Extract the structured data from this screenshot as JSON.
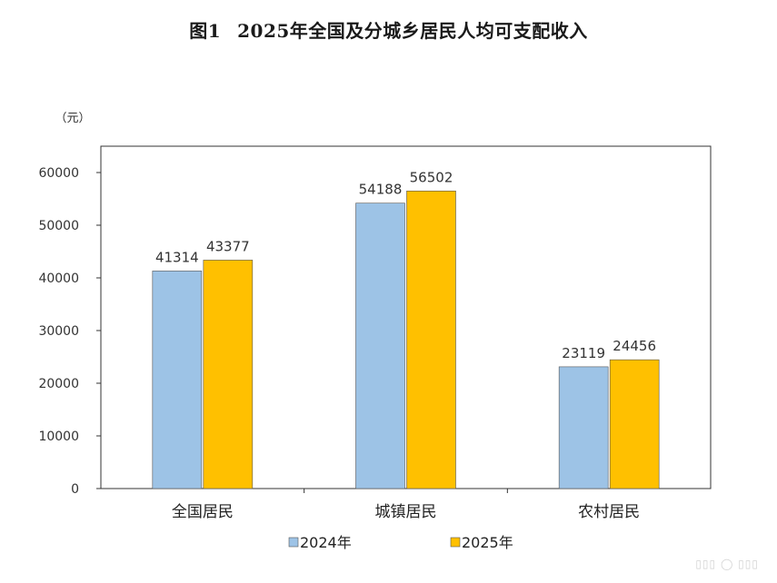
{
  "title": {
    "fig": "图1",
    "text": "2025年全国及分城乡居民人均可支配收入"
  },
  "chart_data": {
    "type": "bar",
    "ylabel": "（元）",
    "ylim": [
      0,
      60000
    ],
    "yticks": [
      0,
      10000,
      20000,
      30000,
      40000,
      50000,
      60000
    ],
    "categories": [
      "全国居民",
      "城镇居民",
      "农村居民"
    ],
    "series": [
      {
        "name": "2024年",
        "values": [
          41314,
          54188,
          23119
        ],
        "color": "#9DC3E6"
      },
      {
        "name": "2025年",
        "values": [
          43377,
          56502,
          24456
        ],
        "color": "#FFC000"
      }
    ],
    "legend_position": "bottom",
    "grid": false
  }
}
